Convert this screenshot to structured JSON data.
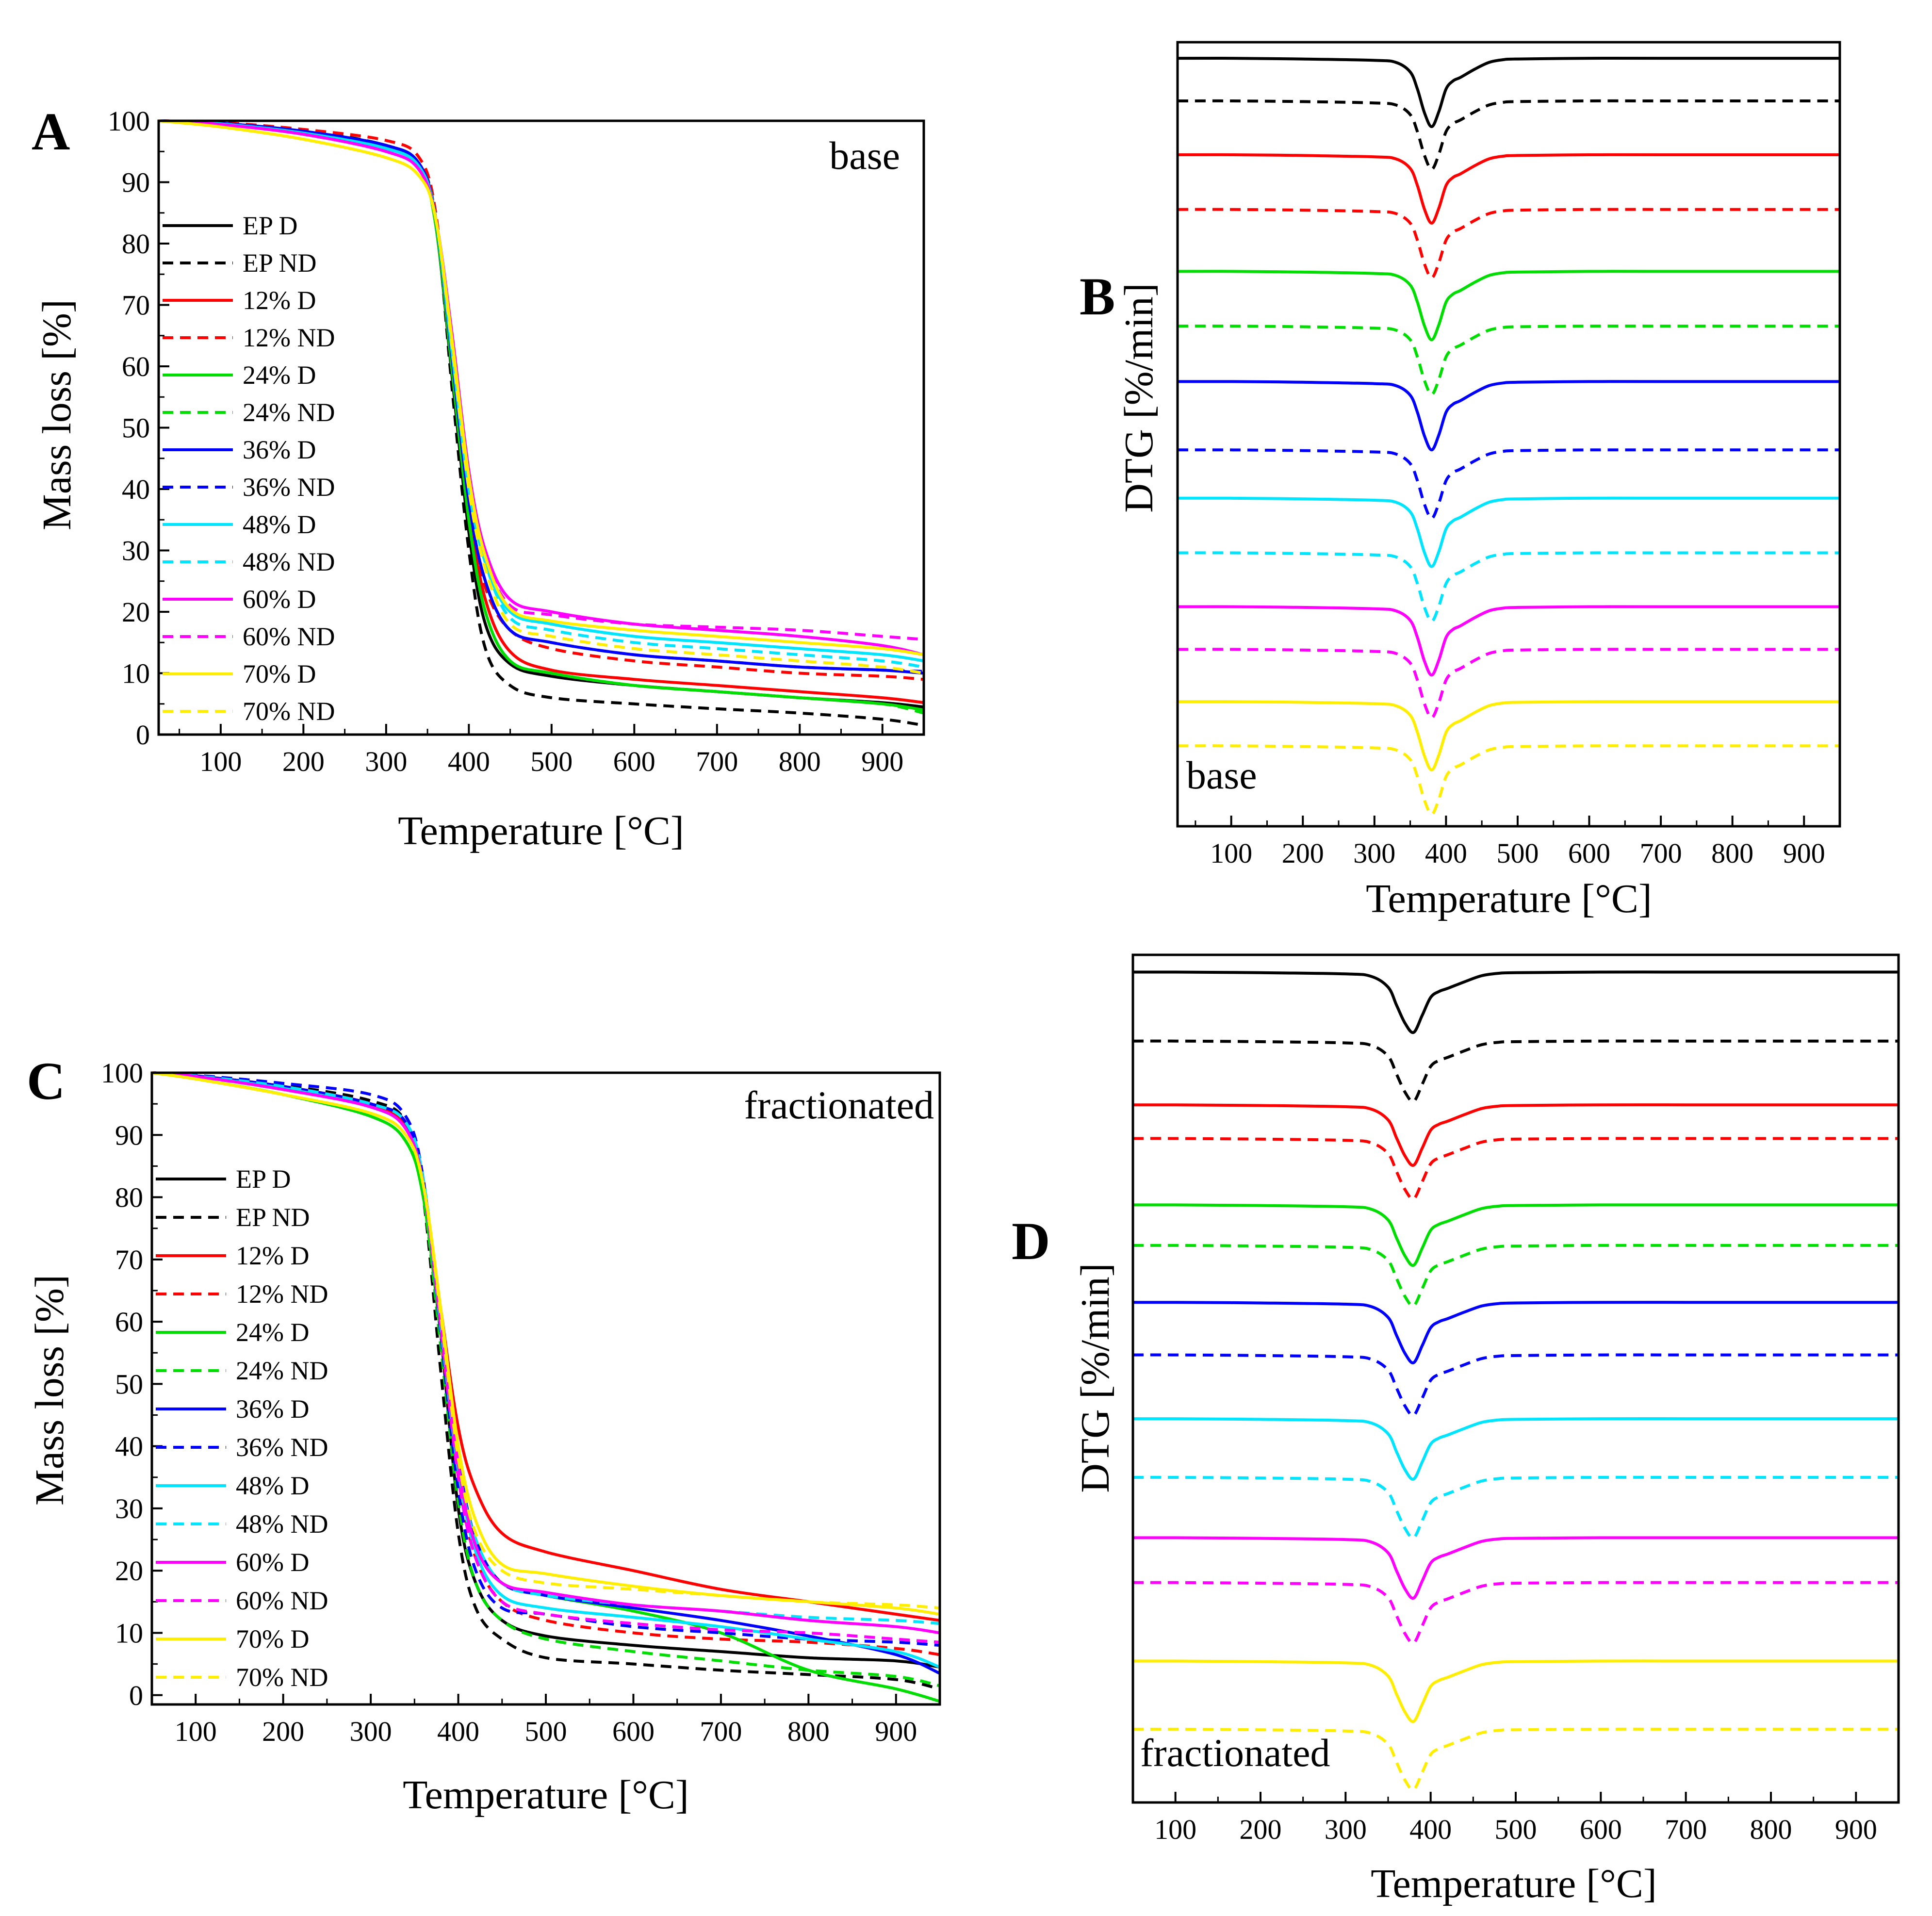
{
  "legend_labels": [
    "EP D",
    "EP ND",
    "12% D",
    "12% ND",
    "24% D",
    "24% ND",
    "36% D",
    "36% ND",
    "48% D",
    "48% ND",
    "60% D",
    "60% ND",
    "70% D",
    "70% ND"
  ],
  "chart_data": [
    {
      "id": "A",
      "type": "line",
      "panel_label": "A",
      "note": "base",
      "xlabel": "Temperature [°C]",
      "ylabel": "Mass loss [%]",
      "xlim": [
        25,
        950
      ],
      "ylim": [
        0,
        100
      ],
      "xticks": [
        "100",
        "200",
        "300",
        "400",
        "500",
        "600",
        "700",
        "800",
        "900"
      ],
      "yticks": [
        "0",
        "10",
        "20",
        "30",
        "40",
        "50",
        "60",
        "70",
        "80",
        "90",
        "100"
      ],
      "x": [
        25,
        100,
        200,
        300,
        340,
        360,
        380,
        400,
        420,
        450,
        500,
        600,
        700,
        800,
        900,
        950
      ],
      "series": [
        {
          "name": "EP D",
          "color": "#000000",
          "dash": false,
          "values": [
            100,
            99.6,
            98.2,
            95.6,
            92.8,
            83,
            58,
            33,
            18,
            11.5,
            9.5,
            8,
            7,
            6,
            5.2,
            4.5
          ]
        },
        {
          "name": "EP ND",
          "color": "#000000",
          "dash": true,
          "values": [
            100,
            99.7,
            98.5,
            96,
            93,
            84,
            56,
            30,
            14,
            8,
            6,
            5,
            4.2,
            3.5,
            2.5,
            1.5
          ]
        },
        {
          "name": "12% D",
          "color": "#ff0000",
          "dash": false,
          "values": [
            100,
            99.6,
            98.3,
            96,
            93,
            84,
            60,
            37,
            22,
            13.5,
            10.5,
            9,
            8,
            7,
            6,
            5.2
          ]
        },
        {
          "name": "12% ND",
          "color": "#ff0000",
          "dash": true,
          "values": [
            100,
            99.7,
            98.6,
            96.8,
            94,
            85,
            60,
            37,
            24,
            17,
            14,
            12,
            11,
            10,
            9.5,
            9
          ]
        },
        {
          "name": "24% D",
          "color": "#00dd00",
          "dash": false,
          "values": [
            100,
            99.5,
            98,
            95.5,
            92.5,
            83,
            59,
            35,
            20,
            12,
            10,
            8,
            7,
            6,
            5,
            4
          ]
        },
        {
          "name": "24% ND",
          "color": "#00dd00",
          "dash": true,
          "values": [
            100,
            99.6,
            98.2,
            96,
            93,
            84,
            59,
            35,
            20,
            12,
            10,
            8,
            7,
            6,
            5,
            3.5
          ]
        },
        {
          "name": "36% D",
          "color": "#0000ff",
          "dash": false,
          "values": [
            100,
            99.6,
            98.3,
            96,
            93,
            84,
            61,
            38,
            25,
            17,
            15,
            13,
            12,
            11,
            10.5,
            10
          ]
        },
        {
          "name": "36% ND",
          "color": "#0000ff",
          "dash": true,
          "values": [
            100,
            99.6,
            98.3,
            96,
            93,
            84,
            61,
            38,
            25,
            17,
            15,
            13,
            12,
            11,
            10.5,
            10.3
          ]
        },
        {
          "name": "48% D",
          "color": "#00e5ff",
          "dash": false,
          "values": [
            100,
            99.5,
            98,
            95.5,
            92.5,
            84,
            62,
            40,
            28,
            20,
            18,
            16,
            15,
            14,
            13,
            12
          ]
        },
        {
          "name": "48% ND",
          "color": "#00e5ff",
          "dash": true,
          "values": [
            100,
            99.5,
            98,
            95.5,
            92.5,
            84,
            62,
            40,
            28,
            19,
            17,
            15,
            14,
            13,
            12,
            11
          ]
        },
        {
          "name": "60% D",
          "color": "#ff00ff",
          "dash": false,
          "values": [
            100,
            99.4,
            97.8,
            95,
            92,
            84,
            65,
            43,
            30,
            22,
            20,
            18,
            17,
            16,
            14.5,
            13
          ]
        },
        {
          "name": "60% ND",
          "color": "#ff00ff",
          "dash": true,
          "values": [
            100,
            99.4,
            97.8,
            95,
            92,
            84,
            64,
            42,
            29,
            21,
            19.5,
            18,
            17.5,
            17,
            16,
            15.5
          ]
        },
        {
          "name": "70% D",
          "color": "#ffee00",
          "dash": false,
          "values": [
            100,
            99,
            97,
            94,
            91,
            84,
            64,
            42,
            29,
            20.5,
            18.5,
            17,
            16,
            15,
            14,
            13
          ]
        },
        {
          "name": "70% ND",
          "color": "#ffee00",
          "dash": true,
          "values": [
            100,
            99,
            97,
            94,
            91,
            84,
            63,
            40,
            27,
            18,
            16,
            14,
            13,
            12,
            11,
            10
          ]
        }
      ]
    },
    {
      "id": "B",
      "type": "line",
      "panel_label": "B",
      "note": "base",
      "xlabel": "Temperature [°C]",
      "ylabel": "DTG [%/min]",
      "xlim": [
        25,
        950
      ],
      "xticks": [
        "100",
        "200",
        "300",
        "400",
        "500",
        "600",
        "700",
        "800",
        "900"
      ],
      "yticks": [],
      "x": [
        25,
        100,
        200,
        300,
        330,
        350,
        360,
        370,
        380,
        390,
        400,
        410,
        420,
        440,
        460,
        480,
        500,
        600,
        700,
        800,
        900,
        950
      ],
      "peak_depth": 8.5,
      "shape": [
        0,
        0,
        0.01,
        0.03,
        0.06,
        0.2,
        0.45,
        0.8,
        1.0,
        0.78,
        0.45,
        0.33,
        0.28,
        0.16,
        0.06,
        0.02,
        0.01,
        0,
        0,
        0,
        0,
        0
      ],
      "series": [
        {
          "name": "EP D",
          "color": "#000000",
          "dash": false,
          "offset": 0
        },
        {
          "name": "EP ND",
          "color": "#000000",
          "dash": true,
          "offset": -5.3
        },
        {
          "name": "12% D",
          "color": "#ff0000",
          "dash": false,
          "offset": -12
        },
        {
          "name": "12% ND",
          "color": "#ff0000",
          "dash": true,
          "offset": -18.8
        },
        {
          "name": "24% D",
          "color": "#00dd00",
          "dash": false,
          "offset": -26.5
        },
        {
          "name": "24% ND",
          "color": "#00dd00",
          "dash": true,
          "offset": -33.3
        },
        {
          "name": "36% D",
          "color": "#0000ff",
          "dash": false,
          "offset": -40.2
        },
        {
          "name": "36% ND",
          "color": "#0000ff",
          "dash": true,
          "offset": -48.7
        },
        {
          "name": "48% D",
          "color": "#00e5ff",
          "dash": false,
          "offset": -54.7
        },
        {
          "name": "48% ND",
          "color": "#00e5ff",
          "dash": true,
          "offset": -61.5
        },
        {
          "name": "60% D",
          "color": "#ff00ff",
          "dash": false,
          "offset": -68.2
        },
        {
          "name": "60% ND",
          "color": "#ff00ff",
          "dash": true,
          "offset": -73.5
        },
        {
          "name": "70% D",
          "color": "#ffee00",
          "dash": false,
          "offset": -80
        },
        {
          "name": "70% ND",
          "color": "#ffee00",
          "dash": true,
          "offset": -85.5
        }
      ]
    },
    {
      "id": "C",
      "type": "line",
      "panel_label": "C",
      "note": "fractionated",
      "xlabel": "Temperature [°C]",
      "ylabel": "Mass loss [%]",
      "xlim": [
        50,
        950
      ],
      "ylim": [
        -1.5,
        100
      ],
      "xticks": [
        "100",
        "200",
        "300",
        "400",
        "500",
        "600",
        "700",
        "800",
        "900"
      ],
      "yticks": [
        "0",
        "10",
        "20",
        "30",
        "40",
        "50",
        "60",
        "70",
        "80",
        "90",
        "100"
      ],
      "x": [
        50,
        100,
        200,
        300,
        340,
        360,
        380,
        400,
        420,
        450,
        500,
        600,
        700,
        800,
        900,
        950
      ],
      "series": [
        {
          "name": "EP D",
          "color": "#000000",
          "dash": false,
          "values": [
            100,
            99.5,
            97.8,
            95,
            92,
            82,
            58,
            30,
            18,
            12,
            9.5,
            8,
            7,
            6,
            5.5,
            4.5
          ]
        },
        {
          "name": "EP ND",
          "color": "#000000",
          "dash": true,
          "values": [
            100,
            99.6,
            98,
            95.5,
            92,
            80,
            52,
            26,
            14,
            9,
            6,
            5,
            4,
            3.3,
            2.5,
            1
          ]
        },
        {
          "name": "12% D",
          "color": "#ff0000",
          "dash": false,
          "values": [
            100,
            99.5,
            97.8,
            95,
            91.5,
            82,
            62,
            43,
            33,
            26,
            23,
            20,
            17,
            15,
            13,
            12
          ]
        },
        {
          "name": "12% ND",
          "color": "#ff0000",
          "dash": true,
          "values": [
            100,
            99.5,
            97.8,
            95,
            91.5,
            82,
            58,
            35,
            22,
            15,
            12,
            10,
            9,
            8.5,
            7.5,
            6.5
          ]
        },
        {
          "name": "24% D",
          "color": "#00dd00",
          "dash": false,
          "values": [
            100,
            99,
            96.5,
            93,
            89,
            80,
            58,
            37,
            25,
            18,
            16,
            13.5,
            10,
            4,
            1,
            -1
          ]
        },
        {
          "name": "24% ND",
          "color": "#00dd00",
          "dash": true,
          "values": [
            100,
            99,
            96.5,
            93,
            89,
            80,
            56,
            31,
            18,
            12,
            9,
            7,
            5.5,
            4,
            3,
            1.5
          ]
        },
        {
          "name": "36% D",
          "color": "#0000ff",
          "dash": false,
          "values": [
            100,
            99.5,
            97.8,
            95,
            92,
            82,
            60,
            38,
            25,
            18,
            16,
            14,
            12,
            9.5,
            6.5,
            3.5
          ]
        },
        {
          "name": "36% ND",
          "color": "#0000ff",
          "dash": true,
          "values": [
            100,
            99.6,
            98.3,
            96.5,
            93,
            83,
            58,
            33,
            20,
            14,
            13,
            11,
            10,
            9,
            8.5,
            8
          ]
        },
        {
          "name": "48% D",
          "color": "#00e5ff",
          "dash": false,
          "values": [
            100,
            99.4,
            97.5,
            94.5,
            91,
            82,
            59,
            36,
            23,
            16,
            14,
            12.5,
            11,
            9,
            7,
            4.5
          ]
        },
        {
          "name": "48% ND",
          "color": "#00e5ff",
          "dash": true,
          "values": [
            100,
            99.5,
            97.8,
            95,
            92,
            83,
            60,
            37,
            25,
            18,
            16,
            14.5,
            13.5,
            12.5,
            12,
            11.5
          ]
        },
        {
          "name": "60% D",
          "color": "#ff00ff",
          "dash": false,
          "values": [
            100,
            99.4,
            97.3,
            94.5,
            91,
            82,
            60,
            37,
            24,
            18,
            16.5,
            14.5,
            13.5,
            12,
            11,
            10
          ]
        },
        {
          "name": "60% ND",
          "color": "#ff00ff",
          "dash": true,
          "values": [
            100,
            99.4,
            97.3,
            94.5,
            91,
            82,
            59,
            35,
            22,
            15,
            13,
            11.5,
            10.5,
            10,
            9,
            8.5
          ]
        },
        {
          "name": "70% D",
          "color": "#ffee00",
          "dash": false,
          "values": [
            100,
            99,
            96.5,
            93.5,
            90,
            82,
            62,
            40,
            28,
            21,
            19.5,
            17.5,
            16,
            15,
            14,
            13
          ]
        },
        {
          "name": "70% ND",
          "color": "#ffee00",
          "dash": true,
          "values": [
            100,
            99,
            96.5,
            93.5,
            90,
            82,
            61,
            38,
            26,
            20,
            18,
            17,
            16,
            15,
            14.5,
            14
          ]
        }
      ]
    },
    {
      "id": "D",
      "type": "line",
      "panel_label": "D",
      "note": "fractionated",
      "xlabel": "Temperature [°C]",
      "ylabel": "DTG [%/min]",
      "xlim": [
        50,
        950
      ],
      "xticks": [
        "100",
        "200",
        "300",
        "400",
        "500",
        "600",
        "700",
        "800",
        "900"
      ],
      "yticks": [],
      "x": [
        50,
        100,
        200,
        300,
        330,
        350,
        360,
        370,
        380,
        390,
        400,
        410,
        420,
        440,
        460,
        480,
        500,
        600,
        700,
        800,
        900,
        950
      ],
      "peak_depth": 7,
      "shape": [
        0,
        0,
        0.01,
        0.03,
        0.07,
        0.25,
        0.55,
        0.85,
        1.0,
        0.72,
        0.42,
        0.32,
        0.27,
        0.16,
        0.06,
        0.02,
        0.01,
        0,
        0,
        0,
        0,
        0
      ],
      "series": [
        {
          "name": "EP D",
          "color": "#000000",
          "dash": false,
          "offset": 0
        },
        {
          "name": "EP ND",
          "color": "#000000",
          "dash": true,
          "offset": -8
        },
        {
          "name": "12% D",
          "color": "#ff0000",
          "dash": false,
          "offset": -15.4
        },
        {
          "name": "12% ND",
          "color": "#ff0000",
          "dash": true,
          "offset": -19.3
        },
        {
          "name": "24% D",
          "color": "#00dd00",
          "dash": false,
          "offset": -27
        },
        {
          "name": "24% ND",
          "color": "#00dd00",
          "dash": true,
          "offset": -31.7
        },
        {
          "name": "36% D",
          "color": "#0000ff",
          "dash": false,
          "offset": -38.3
        },
        {
          "name": "36% ND",
          "color": "#0000ff",
          "dash": true,
          "offset": -44.4
        },
        {
          "name": "48% D",
          "color": "#00e5ff",
          "dash": false,
          "offset": -51.8
        },
        {
          "name": "48% ND",
          "color": "#00e5ff",
          "dash": true,
          "offset": -58.6
        },
        {
          "name": "60% D",
          "color": "#ff00ff",
          "dash": false,
          "offset": -65.6
        },
        {
          "name": "60% ND",
          "color": "#ff00ff",
          "dash": true,
          "offset": -70.8
        },
        {
          "name": "70% D",
          "color": "#ffee00",
          "dash": false,
          "offset": -79.9
        },
        {
          "name": "70% ND",
          "color": "#ffee00",
          "dash": true,
          "offset": -87.8
        }
      ]
    }
  ]
}
